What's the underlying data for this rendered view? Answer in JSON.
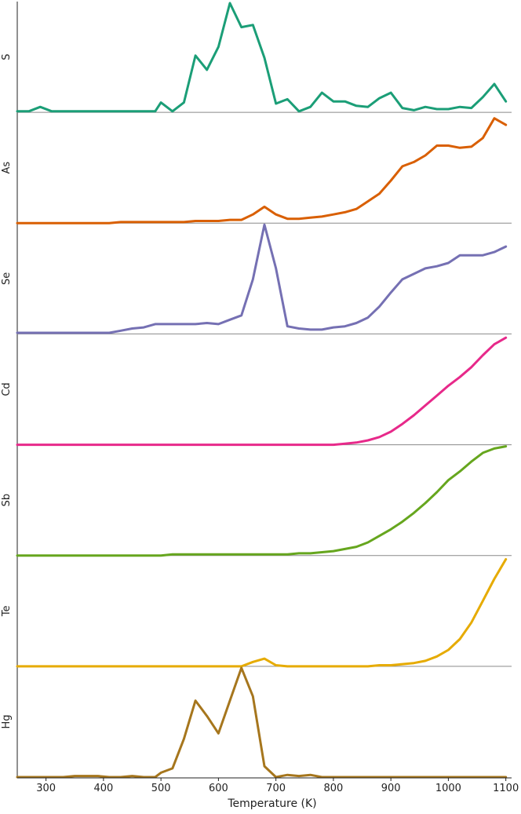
{
  "chart_data": {
    "type": "line",
    "xlabel": "Temperature (K)",
    "xlim": [
      250,
      1110
    ],
    "xticks": [
      300,
      400,
      500,
      600,
      700,
      800,
      900,
      1000,
      1100
    ],
    "grid": false,
    "x": [
      250,
      270,
      290,
      310,
      330,
      350,
      370,
      390,
      410,
      430,
      450,
      470,
      490,
      500,
      520,
      540,
      560,
      580,
      600,
      620,
      640,
      660,
      680,
      700,
      720,
      740,
      760,
      780,
      800,
      820,
      840,
      860,
      880,
      900,
      920,
      940,
      960,
      980,
      1000,
      1020,
      1040,
      1060,
      1080,
      1100
    ],
    "series": [
      {
        "name": "S",
        "color": "#1b9e77",
        "values": [
          0.01,
          0.01,
          0.05,
          0.01,
          0.01,
          0.01,
          0.01,
          0.01,
          0.01,
          0.01,
          0.01,
          0.01,
          0.01,
          0.09,
          0.01,
          0.09,
          0.52,
          0.39,
          0.6,
          1.0,
          0.78,
          0.8,
          0.5,
          0.08,
          0.12,
          0.01,
          0.05,
          0.18,
          0.1,
          0.1,
          0.06,
          0.05,
          0.13,
          0.18,
          0.04,
          0.02,
          0.05,
          0.03,
          0.03,
          0.05,
          0.04,
          0.14,
          0.26,
          0.1
        ]
      },
      {
        "name": "As",
        "color": "#d95f02",
        "values": [
          0.0,
          0.0,
          0.0,
          0.0,
          0.0,
          0.0,
          0.0,
          0.0,
          0.0,
          0.01,
          0.01,
          0.01,
          0.01,
          0.01,
          0.01,
          0.01,
          0.02,
          0.02,
          0.02,
          0.03,
          0.03,
          0.08,
          0.15,
          0.08,
          0.04,
          0.04,
          0.05,
          0.06,
          0.08,
          0.1,
          0.13,
          0.2,
          0.27,
          0.39,
          0.52,
          0.56,
          0.62,
          0.71,
          0.71,
          0.69,
          0.7,
          0.78,
          0.96,
          0.9
        ]
      },
      {
        "name": "Se",
        "color": "#7570b3",
        "values": [
          0.01,
          0.01,
          0.01,
          0.01,
          0.01,
          0.01,
          0.01,
          0.01,
          0.01,
          0.03,
          0.05,
          0.06,
          0.09,
          0.09,
          0.09,
          0.09,
          0.09,
          0.1,
          0.09,
          0.13,
          0.17,
          0.5,
          1.0,
          0.6,
          0.07,
          0.05,
          0.04,
          0.04,
          0.06,
          0.07,
          0.1,
          0.15,
          0.25,
          0.38,
          0.5,
          0.55,
          0.6,
          0.62,
          0.65,
          0.72,
          0.72,
          0.72,
          0.75,
          0.8
        ]
      },
      {
        "name": "Cd",
        "color": "#e7298a",
        "values": [
          0.0,
          0.0,
          0.0,
          0.0,
          0.0,
          0.0,
          0.0,
          0.0,
          0.0,
          0.0,
          0.0,
          0.0,
          0.0,
          0.0,
          0.0,
          0.0,
          0.0,
          0.0,
          0.0,
          0.0,
          0.0,
          0.0,
          0.0,
          0.0,
          0.0,
          0.0,
          0.0,
          0.0,
          0.0,
          0.01,
          0.02,
          0.04,
          0.07,
          0.12,
          0.19,
          0.27,
          0.36,
          0.45,
          0.54,
          0.62,
          0.71,
          0.82,
          0.92,
          0.98
        ]
      },
      {
        "name": "Sb",
        "color": "#66a61e",
        "values": [
          0.0,
          0.0,
          0.0,
          0.0,
          0.0,
          0.0,
          0.0,
          0.0,
          0.0,
          0.0,
          0.0,
          0.0,
          0.0,
          0.0,
          0.01,
          0.01,
          0.01,
          0.01,
          0.01,
          0.01,
          0.01,
          0.01,
          0.01,
          0.01,
          0.01,
          0.02,
          0.02,
          0.03,
          0.04,
          0.06,
          0.08,
          0.12,
          0.18,
          0.24,
          0.31,
          0.39,
          0.48,
          0.58,
          0.69,
          0.77,
          0.86,
          0.94,
          0.98,
          1.0
        ]
      },
      {
        "name": "Te",
        "color": "#e6ab02",
        "values": [
          0.0,
          0.0,
          0.0,
          0.0,
          0.0,
          0.0,
          0.0,
          0.0,
          0.0,
          0.0,
          0.0,
          0.0,
          0.0,
          0.0,
          0.0,
          0.0,
          0.0,
          0.0,
          0.0,
          0.0,
          0.0,
          0.04,
          0.07,
          0.01,
          0.0,
          0.0,
          0.0,
          0.0,
          0.0,
          0.0,
          0.0,
          0.0,
          0.01,
          0.01,
          0.02,
          0.03,
          0.05,
          0.09,
          0.15,
          0.25,
          0.4,
          0.6,
          0.8,
          0.98
        ]
      },
      {
        "name": "Hg",
        "color": "#a6761d",
        "values": [
          0.0,
          0.0,
          0.0,
          0.0,
          0.0,
          0.01,
          0.01,
          0.01,
          0.0,
          0.0,
          0.01,
          0.0,
          0.0,
          0.04,
          0.08,
          0.35,
          0.7,
          0.56,
          0.4,
          0.7,
          1.0,
          0.74,
          0.1,
          0.0,
          0.02,
          0.01,
          0.02,
          0.0,
          0.0,
          0.0,
          0.0,
          0.0,
          0.0,
          0.0,
          0.0,
          0.0,
          0.0,
          0.0,
          0.0,
          0.0,
          0.0,
          0.0,
          0.0,
          0.0
        ]
      }
    ]
  }
}
